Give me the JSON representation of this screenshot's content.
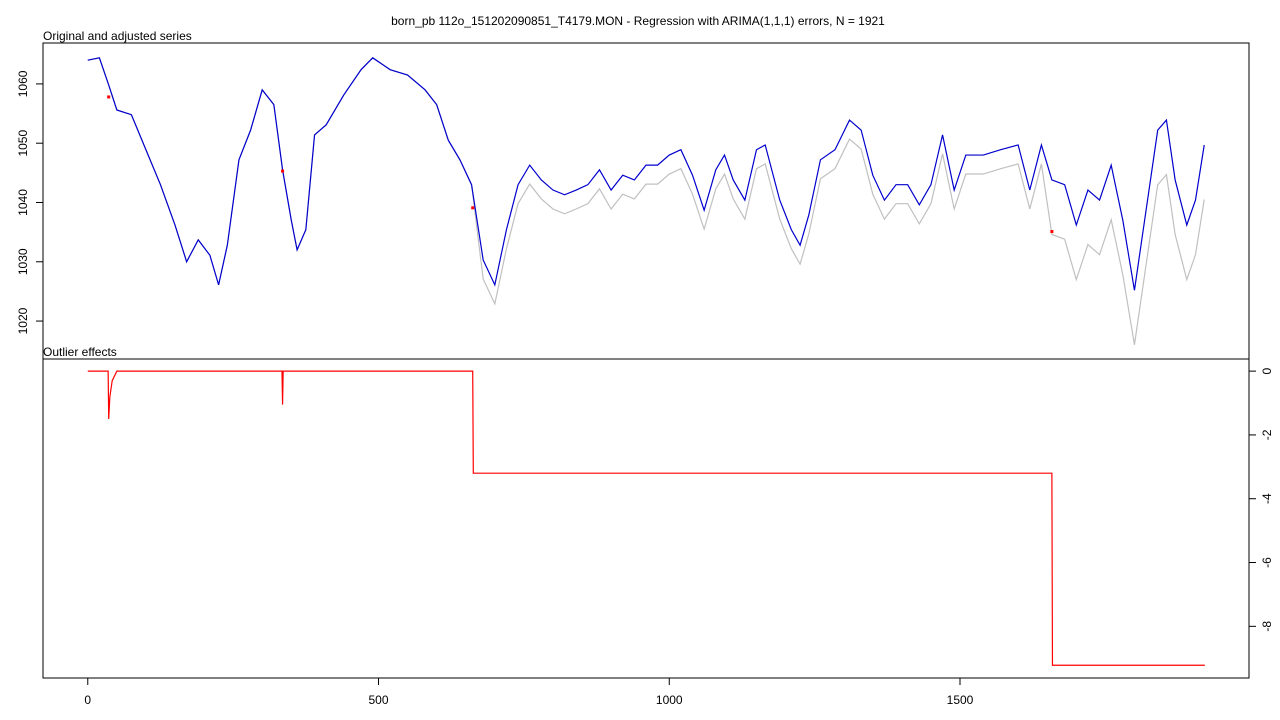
{
  "chart_data": [
    {
      "type": "line",
      "title": "born_pb 112o_151202090851_T4179.MON - Regression with ARIMA(1,1,1) errors, N = 1921",
      "panel_label": "Original and adjusted series",
      "x": [
        0,
        20,
        36,
        50,
        75,
        100,
        125,
        150,
        170,
        190,
        210,
        225,
        240,
        260,
        280,
        300,
        320,
        335,
        350,
        360,
        375,
        390,
        410,
        440,
        470,
        490,
        520,
        550,
        580,
        600,
        620,
        640,
        660,
        680,
        700,
        720,
        740,
        760,
        780,
        800,
        820,
        840,
        860,
        880,
        900,
        920,
        940,
        960,
        980,
        1000,
        1020,
        1040,
        1060,
        1080,
        1095,
        1110,
        1130,
        1150,
        1165,
        1190,
        1210,
        1225,
        1240,
        1260,
        1285,
        1310,
        1330,
        1350,
        1370,
        1390,
        1410,
        1430,
        1450,
        1470,
        1490,
        1510,
        1540,
        1570,
        1600,
        1620,
        1640,
        1658,
        1680,
        1700,
        1720,
        1740,
        1760,
        1780,
        1800,
        1820,
        1840,
        1855,
        1870,
        1890,
        1905,
        1920
      ],
      "series": [
        {
          "color": "#c0c0c0",
          "values": [
            1064,
            1064.4,
            1059.8,
            1055.6,
            1054.8,
            1048.9,
            1043,
            1036.2,
            1030,
            1033.7,
            1031.1,
            1026.1,
            1032.8,
            1047.2,
            1052.2,
            1059,
            1056.5,
            1045.5,
            1037,
            1032,
            1035.4,
            1051.4,
            1053.1,
            1058.1,
            1062.4,
            1064.4,
            1062.4,
            1061.5,
            1059,
            1056.5,
            1050.5,
            1047.2,
            1043,
            1027.1,
            1022.9,
            1032.2,
            1039.8,
            1043.1,
            1040.6,
            1038.9,
            1038.1,
            1038.9,
            1039.8,
            1042.3,
            1038.9,
            1041.4,
            1040.6,
            1043.1,
            1043.1,
            1044.8,
            1045.7,
            1041.4,
            1035.5,
            1042.3,
            1044.8,
            1040.6,
            1037.2,
            1045.7,
            1046.5,
            1037.2,
            1032.2,
            1029.6,
            1034.7,
            1044.0,
            1045.7,
            1050.7,
            1049.0,
            1041.4,
            1037.2,
            1039.8,
            1039.8,
            1036.4,
            1039.8,
            1048.2,
            1038.9,
            1044.8,
            1044.8,
            1045.7,
            1046.5,
            1038.9,
            1046.5,
            1034.6,
            1033.8,
            1027,
            1032.9,
            1031.2,
            1037.1,
            1027.8,
            1016,
            1029.5,
            1043,
            1044.7,
            1034.6,
            1027,
            1031.2,
            1040.5
          ]
        },
        {
          "color": "#0000cd",
          "values": [
            1064,
            1064.4,
            1059.8,
            1055.6,
            1054.8,
            1048.9,
            1043,
            1036.2,
            1030,
            1033.7,
            1031.1,
            1026.1,
            1032.8,
            1047.2,
            1052.2,
            1059,
            1056.5,
            1045.5,
            1037,
            1032,
            1035.4,
            1051.4,
            1053.1,
            1058.1,
            1062.4,
            1064.4,
            1062.4,
            1061.5,
            1059,
            1056.5,
            1050.5,
            1047.2,
            1043,
            1030.3,
            1026.1,
            1035.4,
            1043,
            1046.3,
            1043.8,
            1042.1,
            1041.3,
            1042.1,
            1043,
            1045.5,
            1042.1,
            1044.6,
            1043.8,
            1046.3,
            1046.3,
            1048,
            1048.9,
            1044.6,
            1038.7,
            1045.5,
            1048,
            1043.8,
            1040.4,
            1048.9,
            1049.7,
            1040.4,
            1035.4,
            1032.8,
            1037.9,
            1047.2,
            1048.9,
            1053.9,
            1052.2,
            1044.6,
            1040.4,
            1043,
            1043,
            1039.6,
            1043,
            1051.4,
            1042.1,
            1048,
            1048,
            1048.9,
            1049.7,
            1042.1,
            1049.7,
            1043.8,
            1043,
            1036.2,
            1042.1,
            1040.4,
            1046.3,
            1037,
            1025.2,
            1038.7,
            1052.2,
            1053.9,
            1043.8,
            1036.2,
            1040.4,
            1049.7
          ]
        }
      ],
      "points": {
        "x": [
          36,
          335,
          662,
          1658
        ],
        "values": [
          1057.8,
          1045.3,
          1039.1,
          1035.1
        ],
        "color": "#ff0000"
      },
      "xlim": [
        -77,
        1997
      ],
      "ylim": [
        1013.6,
        1066.9
      ],
      "yticks": [
        1020,
        1030,
        1040,
        1050,
        1060
      ],
      "yaxis_side": "left"
    },
    {
      "type": "line",
      "panel_label": "Outlier effects",
      "x": [
        0,
        35,
        36,
        38,
        42,
        50,
        334,
        335,
        336,
        662,
        663,
        1658,
        1659,
        1921
      ],
      "series": [
        {
          "color": "#ff0000",
          "values": [
            0,
            0,
            -1.5,
            -0.8,
            -0.3,
            0,
            0,
            -1.05,
            0,
            0,
            -3.2,
            -3.2,
            -9.22,
            -9.22
          ]
        }
      ],
      "xlim": [
        -77,
        1997
      ],
      "ylim": [
        -9.62,
        0.38
      ],
      "yticks": [
        0,
        -2,
        -4,
        -6,
        -8
      ],
      "yaxis_side": "right",
      "xticks": [
        0,
        500,
        1000,
        1500
      ]
    }
  ]
}
